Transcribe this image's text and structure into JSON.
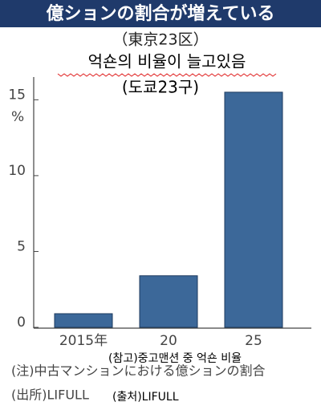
{
  "chart_data": {
    "type": "bar",
    "title": "億ションの割合が増えている",
    "subtitle": "（東京23区）",
    "annotations": [
      "억숀의 비율이 늘고있음",
      "(도쿄23구)",
      "(참고)중고맨션 중 억숀 비율",
      "(출처)LIFULL"
    ],
    "y_unit": "%",
    "categories": [
      "2015年",
      "20",
      "25"
    ],
    "values": [
      0.9,
      3.4,
      15.5
    ],
    "color": "#3c6899",
    "ylim": [
      0,
      16.5
    ],
    "yticks": [
      0,
      5,
      10,
      15
    ],
    "notes": [
      "(注)中古マンションにおける億ションの割合",
      "(出所)LIFULL"
    ]
  }
}
